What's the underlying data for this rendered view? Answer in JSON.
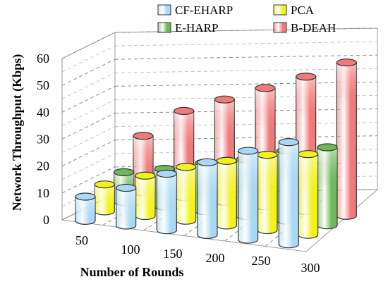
{
  "chart_data": {
    "type": "bar",
    "subtype": "3d-cylinder",
    "title": "",
    "xlabel": "Number of Rounds",
    "ylabel": "Network Throughput (Kbps)",
    "categories": [
      "50",
      "100",
      "150",
      "200",
      "250",
      "300"
    ],
    "ylim": [
      0,
      60
    ],
    "yticks": [
      "0",
      "10",
      "20",
      "30",
      "40",
      "50",
      "60"
    ],
    "grid": true,
    "legend_position": "top",
    "series": [
      {
        "name": "CF-EHARP",
        "values": [
          9,
          14,
          21,
          27,
          33,
          38
        ],
        "color": "#a9d8f5"
      },
      {
        "name": "PCA",
        "values": [
          10,
          15,
          20,
          24,
          28,
          30
        ],
        "color": "#f2f21a"
      },
      {
        "name": "E-HARP",
        "values": [
          11,
          14,
          18,
          21,
          26,
          29
        ],
        "color": "#6fb85a"
      },
      {
        "name": "B-DEAH",
        "values": [
          21,
          32,
          38,
          44,
          50,
          57
        ],
        "color": "#f07a7a"
      }
    ]
  }
}
